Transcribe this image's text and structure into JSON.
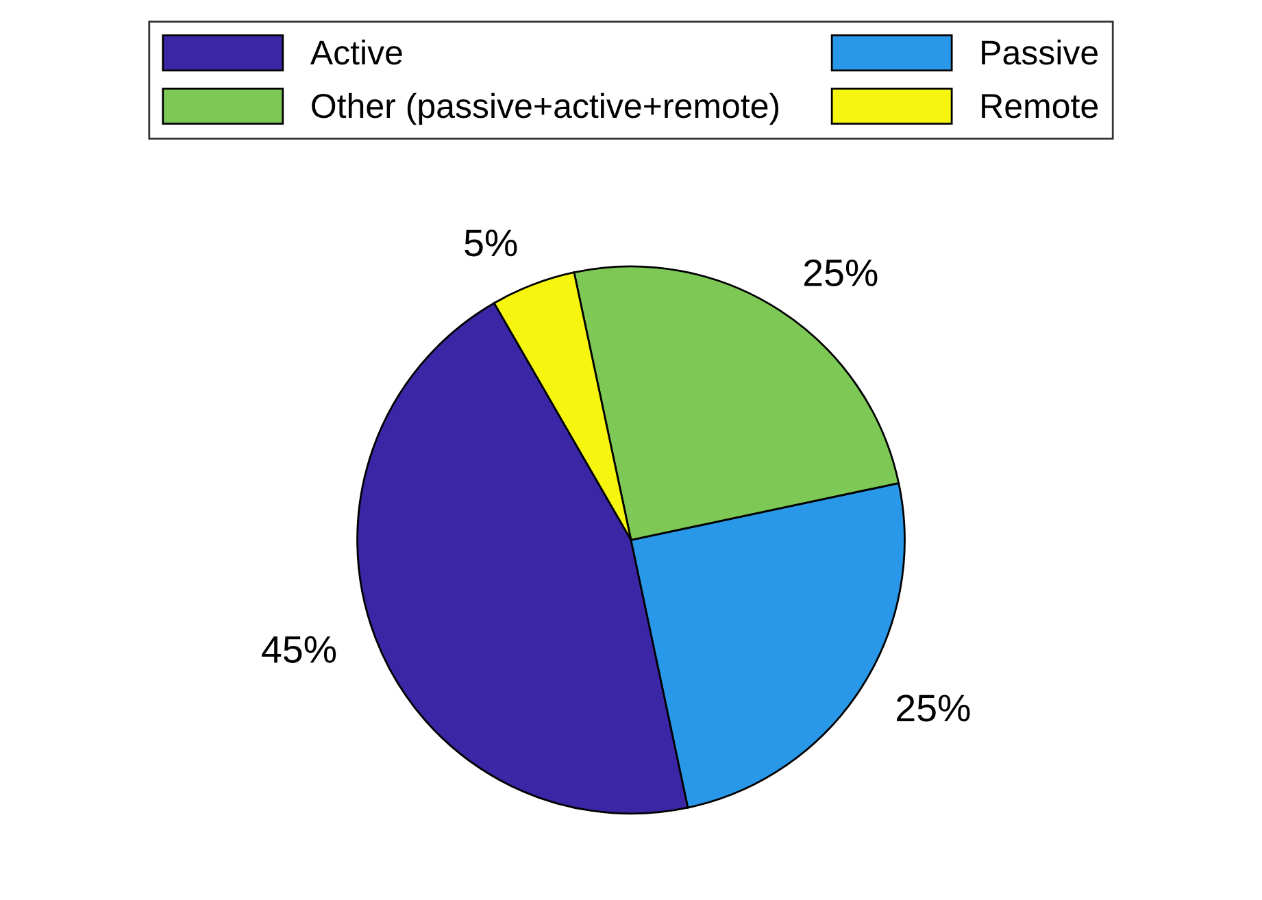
{
  "chart_data": {
    "type": "pie",
    "categories": [
      "Active",
      "Passive",
      "Other (passive+active+remote)",
      "Remote"
    ],
    "values": [
      45,
      25,
      25,
      5
    ],
    "colors": [
      "#3b27a6",
      "#2998e8",
      "#7ec856",
      "#f5f50f"
    ],
    "value_labels": [
      "45%",
      "25%",
      "25%",
      "5%"
    ],
    "legend": "top"
  }
}
